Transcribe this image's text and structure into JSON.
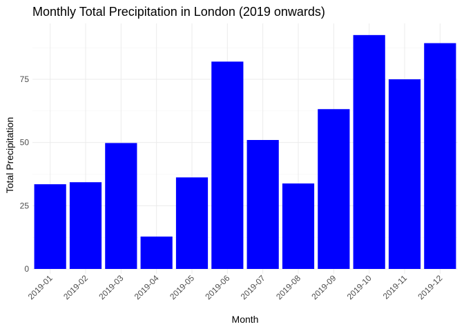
{
  "chart_data": {
    "type": "bar",
    "title": "Monthly  Total Precipitation in London (2019 onwards)",
    "xlabel": "Month",
    "ylabel": "Total Precipitation",
    "categories": [
      "2019-01",
      "2019-02",
      "2019-03",
      "2019-04",
      "2019-05",
      "2019-06",
      "2019-07",
      "2019-08",
      "2019-09",
      "2019-10",
      "2019-11",
      "2019-12"
    ],
    "values": [
      33.5,
      34.3,
      49.8,
      12.8,
      36.2,
      82.0,
      51.0,
      33.8,
      63.2,
      92.5,
      75.0,
      89.3
    ],
    "yticks": [
      0,
      25,
      50,
      75
    ],
    "ylim": [
      0,
      96
    ],
    "bar_color": "#0000FF",
    "grid": true,
    "legend": "none"
  }
}
